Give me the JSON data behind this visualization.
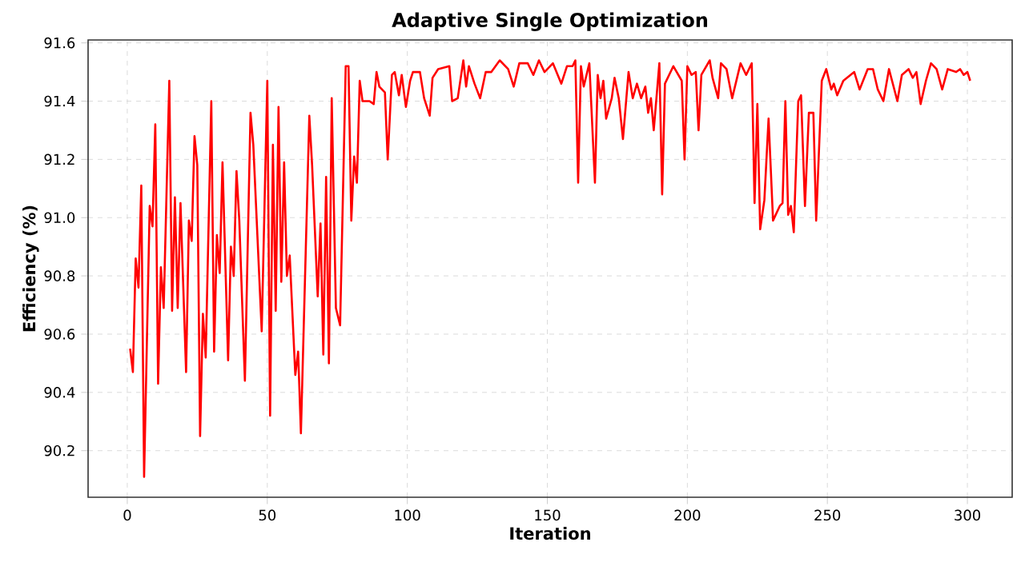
{
  "chart_data": {
    "type": "line",
    "title": "Adaptive Single Optimization",
    "xlabel": "Iteration",
    "ylabel": "Efficiency (%)",
    "x": [
      1,
      2,
      3,
      4,
      5,
      6,
      8,
      9,
      10,
      11,
      12,
      13,
      15,
      16,
      17,
      18,
      19,
      21,
      22,
      23,
      24,
      25,
      26,
      27,
      28,
      30,
      31,
      32,
      33,
      34,
      36,
      37,
      38,
      39,
      40,
      42,
      44,
      45,
      48,
      50,
      51,
      52,
      53,
      54,
      55,
      56,
      57,
      58,
      60,
      61,
      62,
      65,
      66,
      68,
      69,
      70,
      71,
      72,
      73,
      74.5,
      76,
      78,
      79,
      80,
      81,
      82,
      83,
      84,
      86.5,
      88,
      89,
      90,
      92,
      93,
      94.5,
      95.5,
      97,
      98,
      99.5,
      101,
      102,
      104.5,
      106,
      108,
      109,
      111,
      115,
      116,
      118,
      120,
      121,
      122,
      124,
      126,
      128,
      130,
      133,
      136,
      138,
      140,
      143,
      145,
      147,
      149,
      152,
      155,
      157,
      159,
      160,
      161,
      162,
      163,
      165,
      167,
      168,
      169,
      170,
      171,
      173,
      174,
      175.5,
      177,
      179,
      180.5,
      182,
      183.5,
      185,
      186,
      187,
      188,
      190,
      191,
      192,
      195,
      198,
      199,
      200,
      201.5,
      203,
      204,
      205,
      208,
      209,
      211,
      212,
      214,
      216,
      219,
      221,
      223,
      224,
      225,
      226,
      227.5,
      229,
      230.6,
      233,
      234,
      235,
      236,
      237,
      238,
      239.6,
      240.6,
      242,
      243.4,
      245,
      246,
      248,
      249.6,
      251.4,
      252.3,
      253.5,
      255.7,
      259.6,
      261.5,
      264.4,
      266.3,
      268,
      270,
      272,
      275,
      276.6,
      279,
      280.5,
      281.8,
      283.3,
      285.2,
      287,
      289,
      291,
      293,
      296,
      297.4,
      298.7,
      300,
      301
    ],
    "series": [
      {
        "color": "#ff0000",
        "values": [
          90.55,
          90.47,
          90.86,
          90.76,
          91.11,
          90.11,
          91.04,
          90.97,
          91.32,
          90.43,
          90.83,
          90.69,
          91.47,
          90.68,
          91.07,
          90.69,
          91.05,
          90.47,
          90.99,
          90.92,
          91.28,
          91.18,
          90.25,
          90.67,
          90.52,
          91.4,
          90.54,
          90.94,
          90.81,
          91.19,
          90.51,
          90.9,
          90.8,
          91.16,
          90.99,
          90.44,
          91.36,
          91.25,
          90.61,
          91.47,
          90.32,
          91.25,
          90.68,
          91.38,
          90.78,
          91.19,
          90.8,
          90.87,
          90.46,
          90.54,
          90.26,
          91.35,
          91.18,
          90.73,
          90.98,
          90.53,
          91.14,
          90.5,
          91.41,
          90.69,
          90.63,
          91.52,
          91.52,
          90.99,
          91.21,
          91.12,
          91.47,
          91.4,
          91.4,
          91.39,
          91.5,
          91.45,
          91.43,
          91.2,
          91.49,
          91.5,
          91.42,
          91.49,
          91.38,
          91.47,
          91.5,
          91.5,
          91.41,
          91.35,
          91.48,
          91.51,
          91.52,
          91.4,
          91.41,
          91.54,
          91.45,
          91.52,
          91.46,
          91.41,
          91.5,
          91.5,
          91.54,
          91.51,
          91.45,
          91.53,
          91.53,
          91.49,
          91.54,
          91.5,
          91.53,
          91.46,
          91.52,
          91.52,
          91.54,
          91.12,
          91.52,
          91.45,
          91.53,
          91.12,
          91.49,
          91.41,
          91.47,
          91.34,
          91.41,
          91.48,
          91.41,
          91.27,
          91.5,
          91.41,
          91.46,
          91.41,
          91.45,
          91.36,
          91.41,
          91.3,
          91.53,
          91.08,
          91.46,
          91.52,
          91.47,
          91.2,
          91.52,
          91.49,
          91.5,
          91.3,
          91.49,
          91.54,
          91.48,
          91.41,
          91.53,
          91.51,
          91.41,
          91.53,
          91.49,
          91.53,
          91.05,
          91.39,
          90.96,
          91.06,
          91.34,
          90.99,
          91.04,
          91.05,
          91.4,
          91.01,
          91.04,
          90.95,
          91.4,
          91.42,
          91.04,
          91.36,
          91.36,
          90.99,
          91.47,
          91.51,
          91.44,
          91.46,
          91.42,
          91.47,
          91.5,
          91.44,
          91.51,
          91.51,
          91.44,
          91.4,
          91.51,
          91.4,
          91.49,
          91.51,
          91.48,
          91.5,
          91.39,
          91.47,
          91.53,
          91.51,
          91.44,
          91.51,
          91.5,
          91.51,
          91.49,
          91.5,
          91.47
        ]
      }
    ],
    "xlim": [
      -14,
      316
    ],
    "ylim": [
      90.04,
      91.61
    ],
    "xticks": [
      0,
      50,
      100,
      150,
      200,
      250,
      300
    ],
    "yticks": [
      90.2,
      90.4,
      90.6,
      90.8,
      {
        "value": 91,
        "label": "91.0"
      },
      91.2,
      91.4,
      91.6
    ],
    "grid": true,
    "line_style": "solid",
    "marker": "none"
  }
}
